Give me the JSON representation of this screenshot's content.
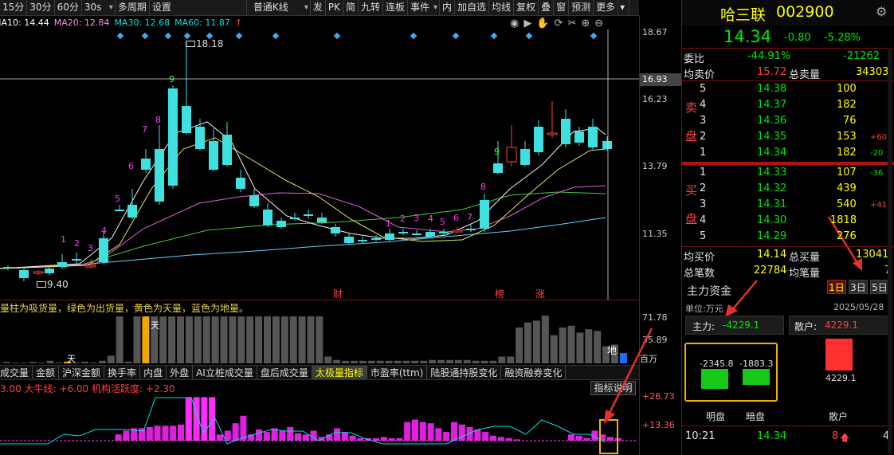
{
  "toolbar": {
    "items": [
      "15分",
      "30分",
      "60分",
      "30s",
      "多周期",
      "设置",
      "普通K线",
      "发",
      "PK",
      "简",
      "九转",
      "连板",
      "事件",
      "内",
      "加自选",
      "均线",
      "复权",
      "叠",
      "窗",
      "预测",
      "更多"
    ]
  },
  "ma": {
    "ma10": "MA10: 14.44",
    "ma20": "MA20: 12.84",
    "ma30": "MA30: 12.68",
    "ma60": "MA60: 11.87"
  },
  "price_axis": [
    "18.67",
    "16.23",
    "13.79",
    "11.35"
  ],
  "crosshair_price": "16.93",
  "high_label": "18.18",
  "low_label": "9.40",
  "markers": [
    "财",
    "榜",
    "涨"
  ],
  "nine_turn": {
    "left": [
      "1",
      "2",
      "3",
      "4",
      "5",
      "6",
      "7",
      "8",
      "9"
    ],
    "right": [
      "1",
      "2",
      "3",
      "4",
      "5",
      "6",
      "7",
      "8",
      "9"
    ]
  },
  "volume": {
    "legend": "量柱为吸货量，绿色为出货量，黄色为天量，蓝色为地量。",
    "axis": [
      "71.78",
      "35.89"
    ],
    "unit": "百万",
    "tian": "天",
    "di": "地",
    "values": [
      2,
      1,
      1,
      2,
      1,
      3,
      1,
      2,
      1,
      2,
      1,
      3,
      9,
      55,
      2,
      55,
      55,
      55,
      55,
      55,
      55,
      55,
      55,
      55,
      55,
      55,
      55,
      55,
      55,
      55,
      55,
      55,
      55,
      55,
      55,
      55,
      55,
      8,
      4,
      3,
      3,
      3,
      3,
      3,
      3,
      3,
      3,
      3,
      3,
      4,
      4,
      4,
      4,
      4,
      3,
      3,
      3,
      8,
      8,
      42,
      48,
      50,
      56,
      33,
      42,
      44,
      36,
      40,
      38,
      20,
      22,
      12
    ]
  },
  "tabs": [
    "成交量",
    "金额",
    "沪深金额",
    "换手率",
    "内盘",
    "外盘",
    "AI立桩成交量",
    "盘后成交量",
    "太极量指标",
    "市盈率(ttm)",
    "陆股通持股变化",
    "融资融券变化"
  ],
  "indicator": {
    "line": "3.00 大牛线: +6.00 机构活跃度: +2.30",
    "button": "指标说明",
    "axis": [
      "+26.73",
      "+13.36"
    ]
  },
  "stock": {
    "name": "哈三联",
    "code": "002900",
    "price": "14.34",
    "change": "-0.80",
    "pct": "-5.28%"
  },
  "weibi": {
    "label": "委比",
    "pct": "-44.91%",
    "diff": "-21262"
  },
  "junmai": {
    "label": "均卖价",
    "value": "15.72",
    "label2": "总卖量",
    "value2": "34303"
  },
  "sell": [
    {
      "lv": "5",
      "p": "14.38",
      "v": "100",
      "c": ""
    },
    {
      "lv": "4",
      "p": "14.37",
      "v": "182",
      "c": ""
    },
    {
      "lv": "3",
      "p": "14.36",
      "v": "76",
      "c": ""
    },
    {
      "lv": "2",
      "p": "14.35",
      "v": "153",
      "c": "+60"
    },
    {
      "lv": "1",
      "p": "14.34",
      "v": "182",
      "c": "-20"
    }
  ],
  "buy": [
    {
      "lv": "1",
      "p": "14.33",
      "v": "107",
      "c": "-36"
    },
    {
      "lv": "2",
      "p": "14.32",
      "v": "439",
      "c": ""
    },
    {
      "lv": "3",
      "p": "14.31",
      "v": "540",
      "c": "+41"
    },
    {
      "lv": "4",
      "p": "14.30",
      "v": "1818",
      "c": ""
    },
    {
      "lv": "5",
      "p": "14.29",
      "v": "276",
      "c": ""
    }
  ],
  "sell_side": [
    "卖",
    "盘"
  ],
  "buy_side": [
    "买",
    "盘"
  ],
  "junmai2": {
    "label": "均买价",
    "value": "14.14",
    "label2": "总买量",
    "value2": "13041"
  },
  "zongbi": {
    "label": "总笔数",
    "value": "22784",
    "label2": "均笔量",
    "value2": "7"
  },
  "capital": {
    "title": "主力资金",
    "periods": [
      "1日",
      "3日",
      "5日"
    ],
    "unit": "单位:万元",
    "date": "2025/05/28",
    "main_label": "主力:",
    "main_value": "-4229.1",
    "retail_label": "散户:",
    "retail_value": "4229.1",
    "ming_value": "-2345.8",
    "an_value": "-1883.3",
    "retail_bar_value": "4229.1",
    "labels": [
      "明盘",
      "暗盘",
      "散户"
    ]
  },
  "ticks": [
    {
      "time": "10:21",
      "price": "14.34",
      "vol": "8",
      "n": "4"
    }
  ]
}
